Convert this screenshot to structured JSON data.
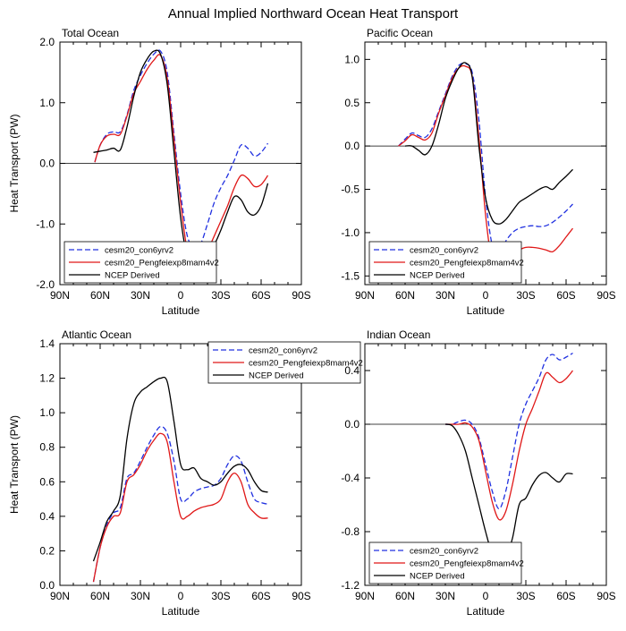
{
  "main_title": "Annual Implied Northward Ocean Heat Transport",
  "x_axis_label": "Latitude",
  "y_axis_label": "Heat Transport (PW)",
  "x_tick_labels": [
    "90N",
    "60N",
    "30N",
    "0",
    "30S",
    "60S",
    "90S"
  ],
  "legend_entries": [
    "cesm20_con6yrv2",
    "cesm20_Pengfeiexp8mam4v2",
    "NCEP Derived"
  ],
  "colors": {
    "series1": "#2030e0",
    "series2": "#e01818",
    "series3": "#000000"
  },
  "chart_data": [
    {
      "type": "line",
      "title": "Total Ocean",
      "xlabel": "Latitude",
      "ylabel": "Heat Transport (PW)",
      "xlim": [
        90,
        -90
      ],
      "ylim": [
        -2.0,
        2.0
      ],
      "yticks": [
        2.0,
        1.0,
        0.0,
        -1.0,
        -2.0
      ],
      "ytick_labels": [
        "2.0",
        "1.0",
        "0.0",
        "-1.0",
        "-2.0"
      ],
      "legend_placement": "bottom-left",
      "series": [
        {
          "name": "cesm20_con6yrv2",
          "style": "dashed",
          "x": [
            64,
            60,
            55,
            50,
            45,
            40,
            35,
            30,
            25,
            20,
            15,
            10,
            5,
            0,
            -5,
            -10,
            -15,
            -20,
            -25,
            -30,
            -35,
            -40,
            -45,
            -50,
            -55,
            -60,
            -65
          ],
          "y": [
            0.02,
            0.3,
            0.48,
            0.52,
            0.52,
            0.8,
            1.2,
            1.45,
            1.65,
            1.8,
            1.85,
            1.5,
            0.5,
            -0.5,
            -1.2,
            -1.38,
            -1.32,
            -1.0,
            -0.65,
            -0.4,
            -0.2,
            0.05,
            0.3,
            0.25,
            0.12,
            0.18,
            0.33
          ]
        },
        {
          "name": "cesm20_Pengfeiexp8mam4v2",
          "style": "solid",
          "x": [
            64,
            60,
            55,
            50,
            45,
            40,
            35,
            30,
            25,
            20,
            15,
            10,
            5,
            0,
            -5,
            -10,
            -15,
            -20,
            -25,
            -30,
            -35,
            -40,
            -45,
            -50,
            -55,
            -60,
            -65
          ],
          "y": [
            0.02,
            0.3,
            0.45,
            0.48,
            0.48,
            0.78,
            1.15,
            1.35,
            1.55,
            1.7,
            1.78,
            1.4,
            0.4,
            -0.65,
            -1.45,
            -1.75,
            -1.68,
            -1.45,
            -1.2,
            -0.95,
            -0.7,
            -0.4,
            -0.2,
            -0.25,
            -0.38,
            -0.35,
            -0.2
          ]
        },
        {
          "name": "NCEP Derived",
          "style": "solid",
          "x": [
            65,
            60,
            55,
            50,
            45,
            40,
            35,
            30,
            25,
            20,
            15,
            10,
            5,
            0,
            -5,
            -10,
            -15,
            -20,
            -25,
            -30,
            -35,
            -40,
            -45,
            -50,
            -55,
            -60,
            -65
          ],
          "y": [
            0.18,
            0.2,
            0.22,
            0.25,
            0.22,
            0.6,
            1.1,
            1.5,
            1.72,
            1.85,
            1.8,
            1.3,
            0.2,
            -0.9,
            -1.55,
            -1.72,
            -1.68,
            -1.55,
            -1.35,
            -1.1,
            -0.8,
            -0.55,
            -0.6,
            -0.8,
            -0.85,
            -0.7,
            -0.33
          ]
        }
      ]
    },
    {
      "type": "line",
      "title": "Pacific Ocean",
      "xlabel": "Latitude",
      "ylabel": "",
      "xlim": [
        90,
        -90
      ],
      "ylim": [
        -1.6,
        1.2
      ],
      "yticks": [
        1.0,
        0.5,
        0.0,
        -0.5,
        -1.0,
        -1.5
      ],
      "ytick_labels": [
        "1.0",
        "0.5",
        "0.0",
        "-0.5",
        "-1.0",
        "-1.5"
      ],
      "legend_placement": "bottom-left",
      "series": [
        {
          "name": "cesm20_con6yrv2",
          "style": "dashed",
          "x": [
            65,
            60,
            55,
            50,
            45,
            40,
            35,
            30,
            25,
            20,
            15,
            10,
            5,
            0,
            -5,
            -10,
            -15,
            -20,
            -25,
            -30,
            -35,
            -40,
            -45,
            -50,
            -55,
            -60,
            -65
          ],
          "y": [
            0.0,
            0.08,
            0.15,
            0.12,
            0.1,
            0.2,
            0.4,
            0.6,
            0.8,
            0.93,
            0.95,
            0.85,
            0.3,
            -0.6,
            -1.15,
            -1.25,
            -1.1,
            -1.0,
            -0.95,
            -0.93,
            -0.92,
            -0.93,
            -0.92,
            -0.88,
            -0.82,
            -0.75,
            -0.67
          ]
        },
        {
          "name": "cesm20_Pengfeiexp8mam4v2",
          "style": "solid",
          "x": [
            65,
            60,
            55,
            50,
            45,
            40,
            35,
            30,
            25,
            20,
            15,
            10,
            5,
            0,
            -5,
            -10,
            -15,
            -20,
            -25,
            -30,
            -35,
            -40,
            -45,
            -50,
            -55,
            -60,
            -65
          ],
          "y": [
            0.0,
            0.06,
            0.13,
            0.1,
            0.07,
            0.15,
            0.38,
            0.58,
            0.78,
            0.9,
            0.92,
            0.8,
            0.1,
            -0.8,
            -1.35,
            -1.45,
            -1.35,
            -1.25,
            -1.2,
            -1.17,
            -1.17,
            -1.18,
            -1.2,
            -1.22,
            -1.15,
            -1.05,
            -0.95
          ]
        },
        {
          "name": "NCEP Derived",
          "style": "solid",
          "x": [
            60,
            55,
            50,
            45,
            40,
            35,
            30,
            25,
            20,
            15,
            10,
            5,
            0,
            -5,
            -10,
            -15,
            -20,
            -25,
            -30,
            -35,
            -40,
            -45,
            -50,
            -55,
            -60,
            -65
          ],
          "y": [
            0.0,
            0.0,
            -0.05,
            -0.1,
            0.0,
            0.25,
            0.55,
            0.75,
            0.9,
            0.96,
            0.8,
            0.0,
            -0.6,
            -0.85,
            -0.9,
            -0.85,
            -0.75,
            -0.65,
            -0.6,
            -0.55,
            -0.5,
            -0.47,
            -0.5,
            -0.42,
            -0.35,
            -0.27
          ]
        }
      ]
    },
    {
      "type": "line",
      "title": "Atlantic Ocean",
      "xlabel": "Latitude",
      "ylabel": "Heat Transport (PW)",
      "xlim": [
        90,
        -90
      ],
      "ylim": [
        0.0,
        1.4
      ],
      "yticks": [
        0.0,
        0.2,
        0.4,
        0.6,
        0.8,
        1.0,
        1.2,
        1.4
      ],
      "ytick_labels": [
        "0.0",
        "0.2",
        "0.4",
        "0.6",
        "0.8",
        "1.0",
        "1.2",
        "1.4"
      ],
      "legend_placement": "top-right",
      "series": [
        {
          "name": "cesm20_con6yrv2",
          "style": "dashed",
          "x": [
            65,
            60,
            55,
            50,
            45,
            40,
            35,
            30,
            25,
            20,
            15,
            10,
            5,
            0,
            -5,
            -10,
            -15,
            -20,
            -25,
            -30,
            -35,
            -40,
            -45,
            -50,
            -55,
            -60,
            -65
          ],
          "y": [
            0.02,
            0.22,
            0.35,
            0.42,
            0.45,
            0.62,
            0.65,
            0.72,
            0.8,
            0.87,
            0.92,
            0.88,
            0.72,
            0.5,
            0.5,
            0.54,
            0.56,
            0.57,
            0.58,
            0.62,
            0.7,
            0.75,
            0.72,
            0.6,
            0.5,
            0.48,
            0.47
          ]
        },
        {
          "name": "cesm20_Pengfeiexp8mam4v2",
          "style": "solid",
          "x": [
            65,
            60,
            55,
            50,
            45,
            40,
            35,
            30,
            25,
            20,
            15,
            10,
            5,
            0,
            -5,
            -10,
            -15,
            -20,
            -25,
            -30,
            -35,
            -40,
            -45,
            -50,
            -55,
            -60,
            -65
          ],
          "y": [
            0.02,
            0.22,
            0.34,
            0.4,
            0.42,
            0.6,
            0.64,
            0.7,
            0.78,
            0.84,
            0.88,
            0.83,
            0.6,
            0.4,
            0.4,
            0.43,
            0.45,
            0.46,
            0.47,
            0.5,
            0.6,
            0.65,
            0.6,
            0.47,
            0.42,
            0.39,
            0.39
          ]
        },
        {
          "name": "NCEP Derived",
          "style": "solid",
          "x": [
            65,
            60,
            55,
            50,
            45,
            40,
            35,
            30,
            25,
            20,
            15,
            10,
            5,
            0,
            -5,
            -10,
            -15,
            -20,
            -25,
            -30,
            -35,
            -40,
            -45,
            -50,
            -55,
            -60,
            -65
          ],
          "y": [
            0.14,
            0.25,
            0.37,
            0.43,
            0.52,
            0.85,
            1.05,
            1.12,
            1.15,
            1.18,
            1.2,
            1.18,
            0.95,
            0.7,
            0.67,
            0.68,
            0.62,
            0.6,
            0.58,
            0.6,
            0.65,
            0.69,
            0.7,
            0.67,
            0.6,
            0.55,
            0.54
          ]
        }
      ]
    },
    {
      "type": "line",
      "title": "Indian Ocean",
      "xlabel": "Latitude",
      "ylabel": "",
      "xlim": [
        90,
        -90
      ],
      "ylim": [
        -1.2,
        0.6
      ],
      "yticks": [
        0.4,
        0.0,
        -0.4,
        -0.8,
        -1.2
      ],
      "ytick_labels": [
        "0.4",
        "0.0",
        "-0.4",
        "-0.8",
        "-1.2"
      ],
      "legend_placement": "bottom-left",
      "series": [
        {
          "name": "cesm20_con6yrv2",
          "style": "dashed",
          "x": [
            30,
            25,
            20,
            15,
            10,
            5,
            0,
            -5,
            -10,
            -15,
            -20,
            -25,
            -30,
            -35,
            -40,
            -45,
            -50,
            -55,
            -60,
            -65
          ],
          "y": [
            0.0,
            0.0,
            0.02,
            0.03,
            0.0,
            -0.1,
            -0.3,
            -0.5,
            -0.63,
            -0.5,
            -0.25,
            0.0,
            0.15,
            0.25,
            0.35,
            0.48,
            0.52,
            0.48,
            0.5,
            0.53
          ]
        },
        {
          "name": "cesm20_Pengfeiexp8mam4v2",
          "style": "solid",
          "x": [
            30,
            25,
            20,
            15,
            10,
            5,
            0,
            -5,
            -10,
            -15,
            -20,
            -25,
            -30,
            -35,
            -40,
            -45,
            -50,
            -55,
            -60,
            -65
          ],
          "y": [
            0.0,
            0.0,
            0.0,
            0.01,
            -0.02,
            -0.12,
            -0.35,
            -0.58,
            -0.71,
            -0.65,
            -0.45,
            -0.2,
            0.0,
            0.12,
            0.25,
            0.38,
            0.35,
            0.31,
            0.34,
            0.4
          ]
        },
        {
          "name": "NCEP Derived",
          "style": "solid",
          "x": [
            30,
            25,
            20,
            15,
            10,
            5,
            0,
            -5,
            -10,
            -15,
            -20,
            -25,
            -30,
            -35,
            -40,
            -45,
            -50,
            -55,
            -60,
            -65
          ],
          "y": [
            0.0,
            -0.01,
            -0.08,
            -0.2,
            -0.4,
            -0.6,
            -0.8,
            -0.97,
            -1.05,
            -1.0,
            -0.85,
            -0.6,
            -0.55,
            -0.45,
            -0.38,
            -0.36,
            -0.4,
            -0.43,
            -0.37,
            -0.37
          ]
        }
      ]
    }
  ]
}
